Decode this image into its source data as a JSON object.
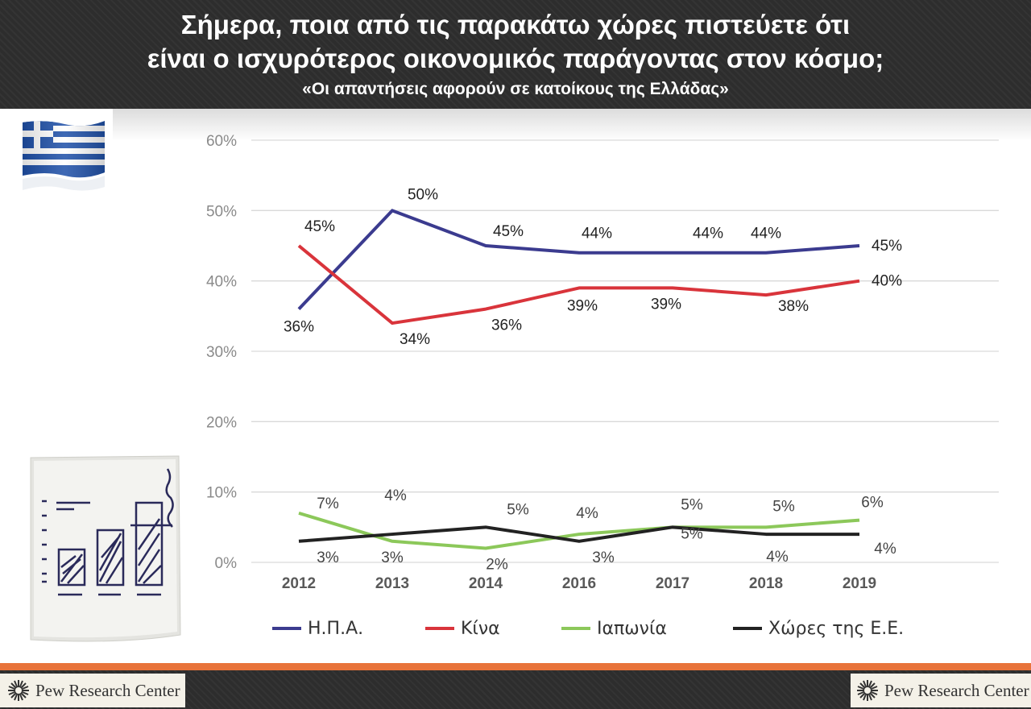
{
  "header": {
    "title_line1": "Σήμερα, ποια από τις παρακάτω χώρες πιστεύετε ότι",
    "title_line2": "είναι ο ισχυρότερος οικονομικός παράγοντας στον κόσμο;",
    "subtitle": "«Οι απαντήσεις αφορούν σε κατοίκους της Ελλάδας»"
  },
  "footer": {
    "logo_left": "Pew Research Center",
    "logo_right": "Pew Research Center"
  },
  "colors": {
    "header_bg": "#2d2d2d",
    "accent_orange": "#e8733a",
    "usa": "#3b3b8f",
    "china": "#d9343b",
    "japan": "#8cc85a",
    "eu": "#222222"
  },
  "chart_data": {
    "type": "line",
    "categories": [
      "2012",
      "2013",
      "2014",
      "2016",
      "2017",
      "2018",
      "2019"
    ],
    "y_ticks": [
      "0%",
      "10%",
      "20%",
      "30%",
      "40%",
      "50%",
      "60%"
    ],
    "ylim": [
      0,
      60
    ],
    "grid": true,
    "legend_position": "bottom",
    "series": [
      {
        "name": "Η.Π.Α.",
        "color": "#3b3b8f",
        "values": [
          36,
          50,
          45,
          44,
          44,
          44,
          45
        ],
        "labels": [
          "36%",
          "50%",
          "45%",
          "44%",
          "44%",
          "44%",
          "45%"
        ]
      },
      {
        "name": "Κίνα",
        "color": "#d9343b",
        "values": [
          45,
          34,
          36,
          39,
          39,
          38,
          40
        ],
        "labels": [
          "45%",
          "34%",
          "36%",
          "39%",
          "39%",
          "38%",
          "40%"
        ]
      },
      {
        "name": "Ιαπωνία",
        "color": "#8cc85a",
        "values": [
          7,
          3,
          2,
          4,
          5,
          5,
          6
        ],
        "labels": [
          "7%",
          "3%",
          "2%",
          "4%",
          "5%",
          "5%",
          "6%"
        ]
      },
      {
        "name": "Χώρες της Ε.Ε.",
        "color": "#222222",
        "values": [
          3,
          4,
          5,
          3,
          5,
          4,
          4
        ],
        "labels": [
          "3%",
          "4%",
          "5%",
          "3%",
          "5%",
          "4%",
          "4%"
        ]
      }
    ]
  }
}
